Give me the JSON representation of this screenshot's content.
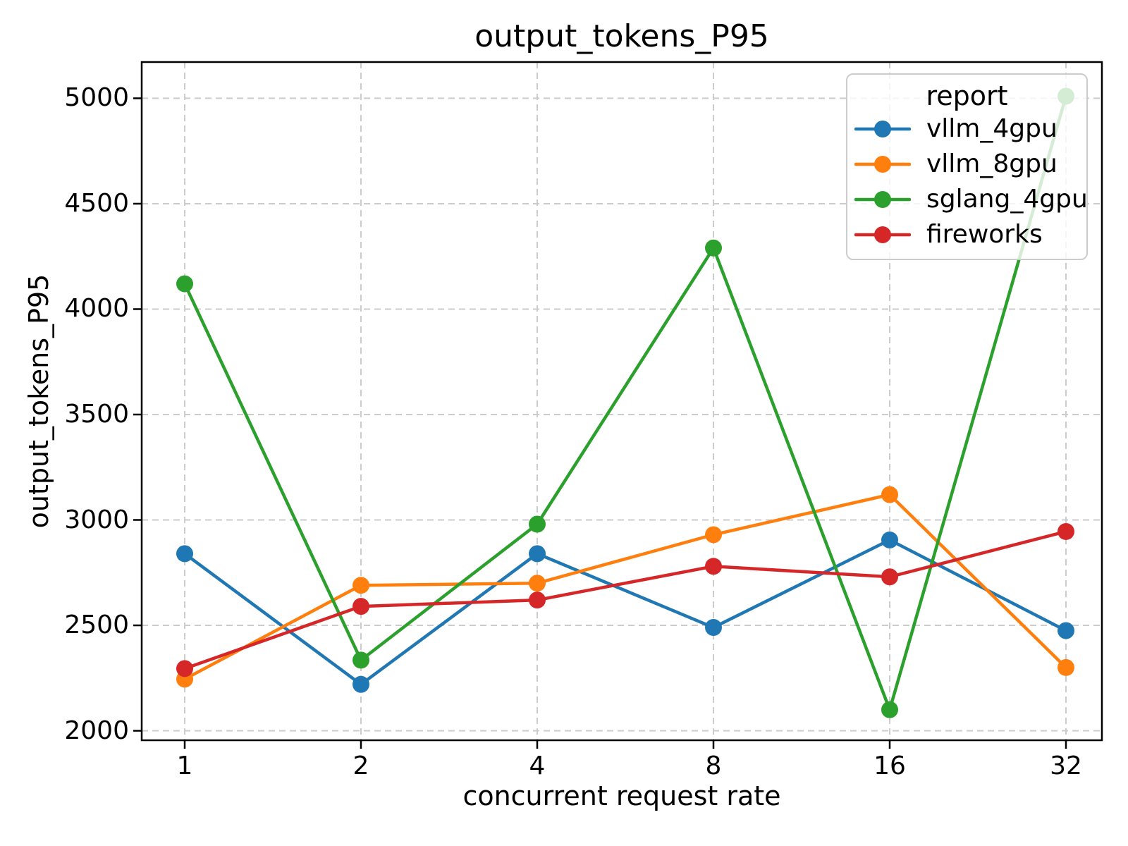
{
  "page": {
    "background": "#ffffff"
  },
  "chart_data": {
    "type": "line",
    "title": "output_tokens_P95",
    "xlabel": "concurrent request rate",
    "ylabel": "output_tokens_P95",
    "categories": [
      "1",
      "2",
      "4",
      "8",
      "16",
      "32"
    ],
    "x_values": [
      1,
      2,
      4,
      8,
      16,
      32
    ],
    "x_scale": "log2",
    "yticks": [
      2000,
      2500,
      3000,
      3500,
      4000,
      4500,
      5000
    ],
    "ylim": [
      1955,
      5172
    ],
    "grid": {
      "enabled": true,
      "style": "dashed",
      "color": "#cccccc"
    },
    "marker": "circle",
    "legend": {
      "title": "report",
      "position": "upper-right"
    },
    "series": [
      {
        "name": "vllm_4gpu",
        "color": "#1f77b4",
        "values": [
          2840,
          2220,
          2840,
          2490,
          2905,
          2475
        ]
      },
      {
        "name": "vllm_8gpu",
        "color": "#ff7f0e",
        "values": [
          2245,
          2690,
          2700,
          2930,
          3120,
          2300
        ]
      },
      {
        "name": "sglang_4gpu",
        "color": "#2ca02c",
        "values": [
          4120,
          2335,
          2980,
          4290,
          2100,
          5010
        ]
      },
      {
        "name": "fireworks",
        "color": "#d62728",
        "values": [
          2295,
          2590,
          2620,
          2780,
          2730,
          2945
        ]
      }
    ]
  }
}
